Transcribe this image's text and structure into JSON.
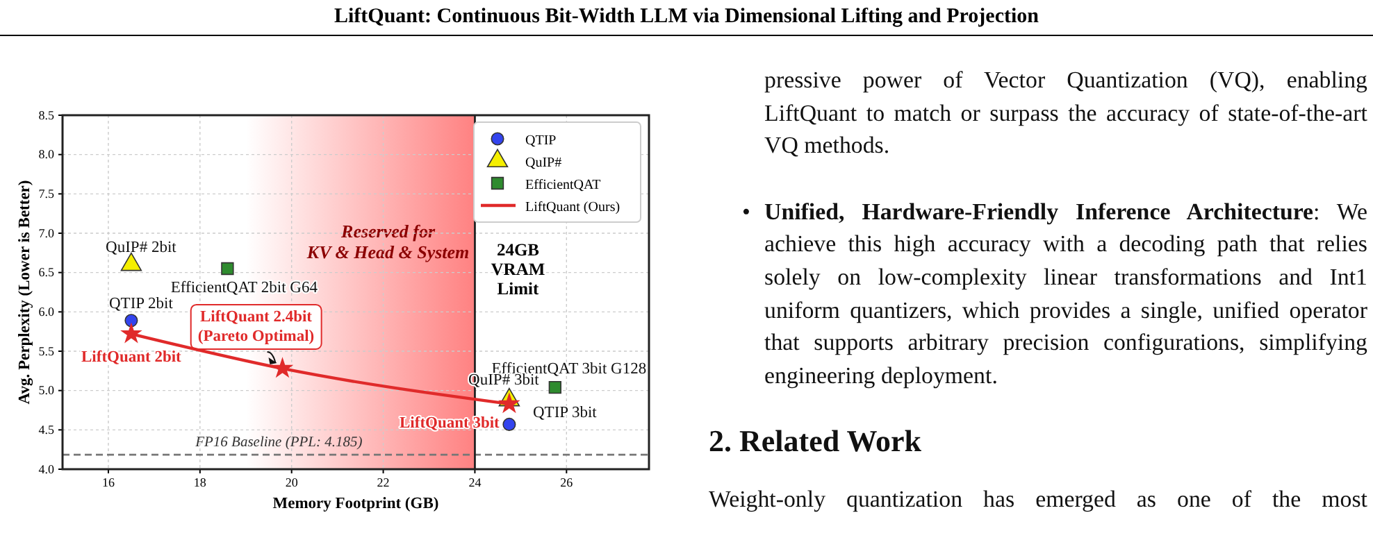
{
  "chart_data": {
    "type": "scatter",
    "title": "LiftQuant: Continuous Bit-Width LLM via Dimensional Lifting and Projection",
    "xlabel": "Memory Footprint (GB)",
    "ylabel": "Avg. Perplexity (Lower is Better)",
    "xlim": [
      15,
      27.8
    ],
    "ylim": [
      4.0,
      8.5
    ],
    "xticks": [
      16,
      18,
      20,
      22,
      24,
      26
    ],
    "yticks": [
      {
        "value": 4.0,
        "label": "4.0"
      },
      {
        "value": 4.5,
        "label": "4.5"
      },
      {
        "value": 5.0,
        "label": "5.0"
      },
      {
        "value": 5.5,
        "label": "5.5"
      },
      {
        "value": 6.0,
        "label": "6.0"
      },
      {
        "value": 6.5,
        "label": "6.5"
      },
      {
        "value": 7.0,
        "label": "7.0"
      },
      {
        "value": 7.5,
        "label": "7.5"
      },
      {
        "value": 8.0,
        "label": "8.0"
      },
      {
        "value": 8.5,
        "label": "8.5"
      }
    ],
    "grid": true,
    "legend": "top right",
    "series": [
      {
        "name": "QTIP",
        "marker": "circle",
        "color": "#3344ee",
        "x": [
          16.5,
          24.75
        ],
        "values": [
          5.89,
          4.57
        ]
      },
      {
        "name": "QuIP#",
        "marker": "triangle",
        "color": "#f5ef00",
        "x": [
          16.5,
          24.75
        ],
        "values": [
          6.6,
          4.88
        ]
      },
      {
        "name": "EfficientQAT",
        "marker": "square",
        "color": "#2e8b2e",
        "x": [
          18.6,
          25.75
        ],
        "values": [
          6.55,
          5.04
        ]
      },
      {
        "name": "LiftQuant (Ours)",
        "type": "line",
        "marker": "star",
        "color": "#e02a2a",
        "x": [
          16.5,
          19.8,
          24.75
        ],
        "values": [
          5.72,
          5.28,
          4.83
        ]
      }
    ],
    "ref_lines": [
      {
        "axis": "y",
        "value": 4.185,
        "label": "FP16 Baseline (PPL: 4.185)",
        "color": "#777777",
        "line_style": "dashed"
      },
      {
        "axis": "x",
        "value": 24,
        "label": "24GB\nVRAM\nLimit",
        "color": "#222222",
        "line_style": "solid"
      }
    ],
    "bands": [
      {
        "axis": "x",
        "from": 19,
        "to": 24,
        "label": "Reserved for\nKV & Head & System",
        "color": "#ff6b6b"
      }
    ],
    "annotations": [
      {
        "text": "QuIP# 2bit",
        "x": 16.5,
        "y": 6.6
      },
      {
        "text": "EfficientQAT 2bit G64",
        "x": 18.6,
        "y": 6.55
      },
      {
        "text": "QTIP 2bit",
        "x": 16.5,
        "y": 5.89
      },
      {
        "text": "LiftQuant 2bit",
        "x": 16.5,
        "y": 5.72
      },
      {
        "text": "LiftQuant 2.4bit\n(Pareto Optimal)",
        "x": 19.8,
        "y": 5.28
      },
      {
        "text": "EfficientQAT 3bit G128",
        "x": 25.75,
        "y": 5.04
      },
      {
        "text": "QuIP# 3bit",
        "x": 24.75,
        "y": 4.88
      },
      {
        "text": "QTIP 3bit",
        "x": 24.75,
        "y": 4.57
      },
      {
        "text": "LiftQuant 3bit",
        "x": 24.75,
        "y": 4.83
      },
      "pressive power of Vector Quantization (VQ), enabling LiftQuant to match or surpass the accuracy of state-of-the-art VQ methods.",
      "•",
      "Unified, Hardware-Friendly Inference Architecture",
      ": We achieve this high accuracy with a decoding path that relies solely on low-complexity linear transformations and Int1 uniform quantizers, which provides a single, unified operator that supports arbitrary precision configurations, simplifying engineering deployment.",
      "2. Related Work",
      "Weight-only quantization has emerged as one of the most"
    ]
  }
}
